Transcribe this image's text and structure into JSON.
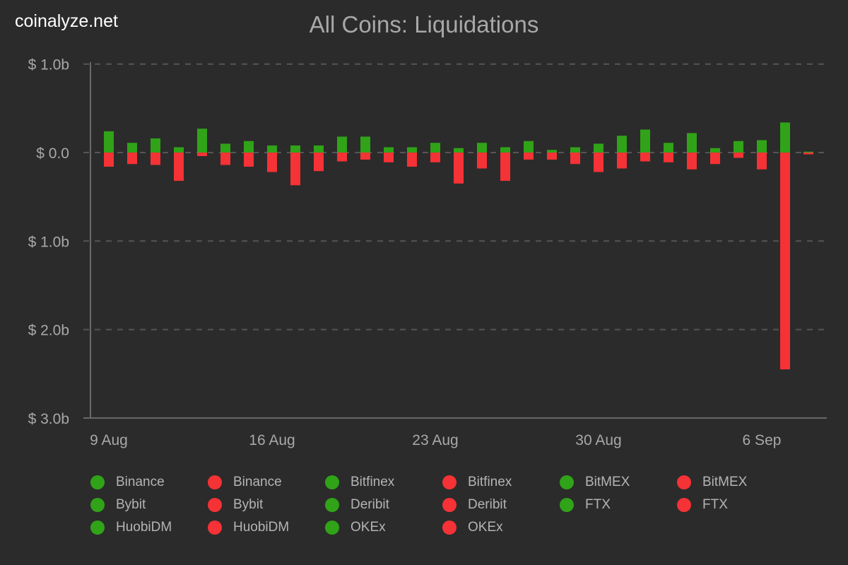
{
  "brand": "coinalyze.net",
  "colors": {
    "background": "#2b2b2b",
    "positive": "#30a318",
    "negative": "#f53236",
    "grid": "#555555"
  },
  "chart_data": {
    "type": "bar",
    "stacked": true,
    "title": "All Coins: Liquidations",
    "xlabel": "",
    "ylabel": "",
    "ylim": [
      -3.0,
      1.0
    ],
    "y_unit": "billion USD",
    "y_ticks": [
      {
        "value": 1.0,
        "label": "$ 1.0b"
      },
      {
        "value": 0.0,
        "label": "$ 0.0"
      },
      {
        "value": -1.0,
        "label": "$ 1.0b"
      },
      {
        "value": -2.0,
        "label": "$ 2.0b"
      },
      {
        "value": -3.0,
        "label": "$ 3.0b"
      }
    ],
    "x_ticks": [
      {
        "date": "9 Aug",
        "label": "9 Aug"
      },
      {
        "date": "16 Aug",
        "label": "16 Aug"
      },
      {
        "date": "23 Aug",
        "label": "23 Aug"
      },
      {
        "date": "30 Aug",
        "label": "30 Aug"
      },
      {
        "date": "6 Sep",
        "label": "6 Sep"
      }
    ],
    "grid": "horizontal dashed",
    "legend_position": "bottom",
    "categories": [
      "9 Aug",
      "10 Aug",
      "11 Aug",
      "12 Aug",
      "13 Aug",
      "14 Aug",
      "15 Aug",
      "16 Aug",
      "17 Aug",
      "18 Aug",
      "19 Aug",
      "20 Aug",
      "21 Aug",
      "22 Aug",
      "23 Aug",
      "24 Aug",
      "25 Aug",
      "26 Aug",
      "27 Aug",
      "28 Aug",
      "29 Aug",
      "30 Aug",
      "31 Aug",
      "1 Sep",
      "2 Sep",
      "3 Sep",
      "4 Sep",
      "5 Sep",
      "6 Sep",
      "7 Sep",
      "8 Sep"
    ],
    "series": [
      {
        "color": "green",
        "values": [
          0.24,
          0.11,
          0.16,
          0.06,
          0.27,
          0.1,
          0.13,
          0.08,
          0.08,
          0.08,
          0.18,
          0.18,
          0.06,
          0.06,
          0.11,
          0.05,
          0.11,
          0.06,
          0.13,
          0.03,
          0.06,
          0.1,
          0.19,
          0.26,
          0.11,
          0.22,
          0.05,
          0.13,
          0.14,
          0.34,
          0.01
        ]
      },
      {
        "color": "red",
        "values": [
          -0.16,
          -0.13,
          -0.14,
          -0.32,
          -0.04,
          -0.14,
          -0.16,
          -0.22,
          -0.37,
          -0.21,
          -0.1,
          -0.08,
          -0.11,
          -0.16,
          -0.11,
          -0.35,
          -0.18,
          -0.32,
          -0.08,
          -0.08,
          -0.13,
          -0.22,
          -0.18,
          -0.1,
          -0.11,
          -0.19,
          -0.13,
          -0.06,
          -0.19,
          -2.45,
          -0.02
        ]
      }
    ],
    "legend": [
      {
        "label": "Binance",
        "color": "green"
      },
      {
        "label": "Binance",
        "color": "red"
      },
      {
        "label": "Bitfinex",
        "color": "green"
      },
      {
        "label": "Bitfinex",
        "color": "red"
      },
      {
        "label": "BitMEX",
        "color": "green"
      },
      {
        "label": "BitMEX",
        "color": "red"
      },
      {
        "label": "Bybit",
        "color": "green"
      },
      {
        "label": "Bybit",
        "color": "red"
      },
      {
        "label": "Deribit",
        "color": "green"
      },
      {
        "label": "Deribit",
        "color": "red"
      },
      {
        "label": "FTX",
        "color": "green"
      },
      {
        "label": "FTX",
        "color": "red"
      },
      {
        "label": "HuobiDM",
        "color": "green"
      },
      {
        "label": "HuobiDM",
        "color": "red"
      },
      {
        "label": "OKEx",
        "color": "green"
      },
      {
        "label": "OKEx",
        "color": "red"
      }
    ]
  }
}
